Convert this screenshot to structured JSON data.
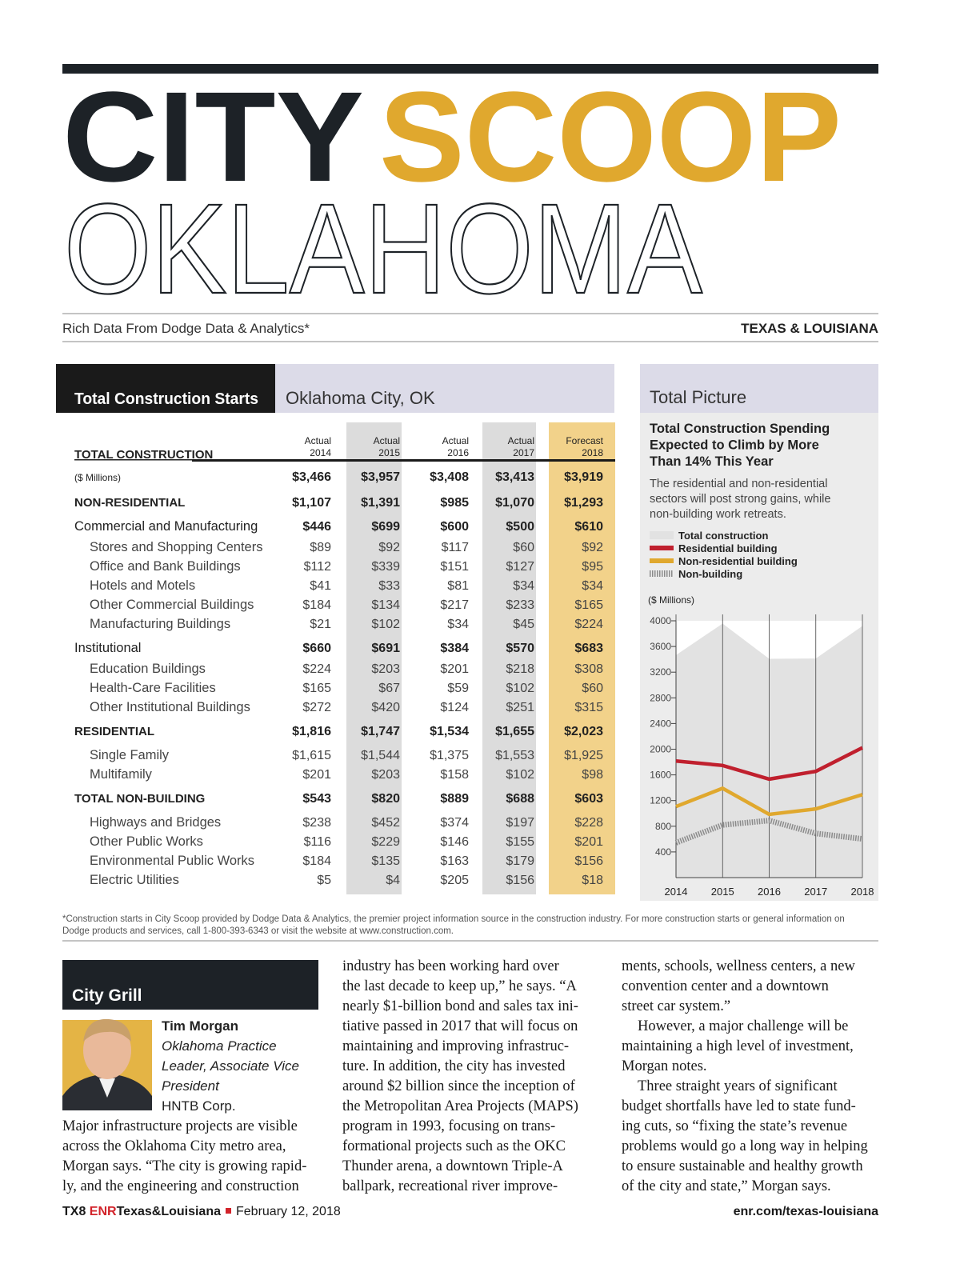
{
  "header": {
    "title_dark": "CITY",
    "title_gold": "SCOOP",
    "state": "OKLAHOMA",
    "tagline": "Rich Data From Dodge Data & Analytics*",
    "region": "TEXAS & LOUISIANA"
  },
  "table": {
    "title": "Total Construction Starts",
    "location": "Oklahoma City, OK",
    "columns": [
      {
        "type": "Actual",
        "year": "2014"
      },
      {
        "type": "Actual",
        "year": "2015"
      },
      {
        "type": "Actual",
        "year": "2016"
      },
      {
        "type": "Actual",
        "year": "2017"
      },
      {
        "type": "Forecast",
        "year": "2018"
      }
    ],
    "total": {
      "name": "TOTAL CONSTRUCTION",
      "units": "($ Millions)",
      "values": [
        "$3,466",
        "$3,957",
        "$3,408",
        "$3,413",
        "$3,919"
      ]
    },
    "sections": [
      {
        "name": "NON-RESIDENTIAL",
        "values": [
          "$1,107",
          "$1,391",
          "$985",
          "$1,070",
          "$1,293"
        ],
        "groups": [
          {
            "name": "Commercial and Manufacturing",
            "values": [
              "$446",
              "$699",
              "$600",
              "$500",
              "$610"
            ],
            "items": [
              {
                "name": "Stores and Shopping Centers",
                "values": [
                  "$89",
                  "$92",
                  "$117",
                  "$60",
                  "$92"
                ]
              },
              {
                "name": "Office and Bank Buildings",
                "values": [
                  "$112",
                  "$339",
                  "$151",
                  "$127",
                  "$95"
                ]
              },
              {
                "name": "Hotels and Motels",
                "values": [
                  "$41",
                  "$33",
                  "$81",
                  "$34",
                  "$34"
                ]
              },
              {
                "name": "Other Commercial Buildings",
                "values": [
                  "$184",
                  "$134",
                  "$217",
                  "$233",
                  "$165"
                ]
              },
              {
                "name": "Manufacturing Buildings",
                "values": [
                  "$21",
                  "$102",
                  "$34",
                  "$45",
                  "$224"
                ]
              }
            ]
          },
          {
            "name": "Institutional",
            "values": [
              "$660",
              "$691",
              "$384",
              "$570",
              "$683"
            ],
            "items": [
              {
                "name": "Education Buildings",
                "values": [
                  "$224",
                  "$203",
                  "$201",
                  "$218",
                  "$308"
                ]
              },
              {
                "name": "Health-Care Facilities",
                "values": [
                  "$165",
                  "$67",
                  "$59",
                  "$102",
                  "$60"
                ]
              },
              {
                "name": "Other Institutional Buildings",
                "values": [
                  "$272",
                  "$420",
                  "$124",
                  "$251",
                  "$315"
                ]
              }
            ]
          }
        ]
      },
      {
        "name": "RESIDENTIAL",
        "values": [
          "$1,816",
          "$1,747",
          "$1,534",
          "$1,655",
          "$2,023"
        ],
        "items": [
          {
            "name": "Single Family",
            "values": [
              "$1,615",
              "$1,544",
              "$1,375",
              "$1,553",
              "$1,925"
            ]
          },
          {
            "name": "Multifamily",
            "values": [
              "$201",
              "$203",
              "$158",
              "$102",
              "$98"
            ]
          }
        ]
      },
      {
        "name": "TOTAL NON-BUILDING",
        "values": [
          "$543",
          "$820",
          "$889",
          "$688",
          "$603"
        ],
        "items": [
          {
            "name": "Highways and Bridges",
            "values": [
              "$238",
              "$452",
              "$374",
              "$197",
              "$228"
            ]
          },
          {
            "name": "Other Public Works",
            "values": [
              "$116",
              "$229",
              "$146",
              "$155",
              "$201"
            ]
          },
          {
            "name": "Environmental Public Works",
            "values": [
              "$184",
              "$135",
              "$163",
              "$179",
              "$156"
            ]
          },
          {
            "name": "Electric Utilities",
            "values": [
              "$5",
              "$4",
              "$205",
              "$156",
              "$18"
            ]
          }
        ]
      }
    ]
  },
  "footnote": [
    "*Construction starts in City Scoop provided by Dodge Data & Analytics, the premier project information source in the construction industry. For more construction starts or general information on",
    "Dodge products and services, call 1-800-393-6343 or visit the website at www.construction.com."
  ],
  "sidebar": {
    "title": "Total Picture",
    "headline": [
      "Total Construction Spending",
      "Expected to Climb by More",
      "Than 14% This Year"
    ],
    "body": [
      "The residential and non-residential",
      "sectors will post strong gains, while",
      "non-building work retreats."
    ]
  },
  "chart_data": {
    "type": "line",
    "y_label": "($ Millions)",
    "categories": [
      "2014",
      "2015",
      "2016",
      "2017",
      "2018"
    ],
    "ylim": [
      0,
      4000
    ],
    "yticks": [
      400,
      800,
      1200,
      1600,
      2000,
      2400,
      2800,
      3200,
      3600,
      4000
    ],
    "series": [
      {
        "name": "Total construction",
        "color": "#e2e2e2",
        "style": "area",
        "values": [
          3466,
          3957,
          3408,
          3413,
          3919
        ]
      },
      {
        "name": "Residential building",
        "color": "#c0202e",
        "style": "solid",
        "values": [
          1816,
          1747,
          1534,
          1655,
          2023
        ]
      },
      {
        "name": "Non-residential building",
        "color": "#e0a82e",
        "style": "solid",
        "values": [
          1107,
          1391,
          985,
          1070,
          1293
        ]
      },
      {
        "name": "Non-building",
        "color": "#8a8a8a",
        "style": "hatched",
        "values": [
          543,
          820,
          889,
          688,
          603
        ]
      }
    ]
  },
  "article": {
    "heading": "City Grill",
    "person": {
      "name": "Tim Morgan",
      "title": [
        "Oklahoma Practice",
        "Leader, Associate Vice",
        "President"
      ],
      "company": "HNTB Corp."
    },
    "columns": [
      [
        [
          "Major infrastructure projects are visible",
          "across the Oklahoma City metro area,",
          "Morgan says. “The city is growing rapid-",
          "ly, and the engineering and construction"
        ]
      ],
      [
        [
          "industry has been working hard over",
          "the last decade to keep up,” he says. “A",
          "nearly $1-billion bond and sales tax ini-",
          "tiative passed in 2017 that will focus on",
          "maintaining and improving infrastruc-",
          "ture. In addition, the city has invested",
          "around $2 billion since the inception of",
          "the Metropolitan Area Projects (MAPS)",
          "program in 1993, focusing on trans-",
          "formational projects such as the OKC",
          "Thunder arena, a downtown Triple-A",
          "ballpark, recreational river improve-"
        ]
      ],
      [
        [
          "ments, schools, wellness centers, a new",
          "convention center and a downtown",
          "street car system.”"
        ],
        [
          "However, a major challenge will be",
          "maintaining a high level of investment,",
          "Morgan notes."
        ],
        [
          "Three straight years of significant",
          "budget shortfalls have led to state fund-",
          "ing cuts, so “fixing the state’s revenue",
          "problems would go a long way in helping",
          "to ensure sustainable and healthy growth",
          "of the city and state,” Morgan says."
        ]
      ]
    ]
  },
  "footer": {
    "page": "TX8",
    "brand": "ENR",
    "edition": "Texas&Louisiana",
    "date": "February 12, 2018",
    "url": "enr.com/texas-louisiana"
  }
}
